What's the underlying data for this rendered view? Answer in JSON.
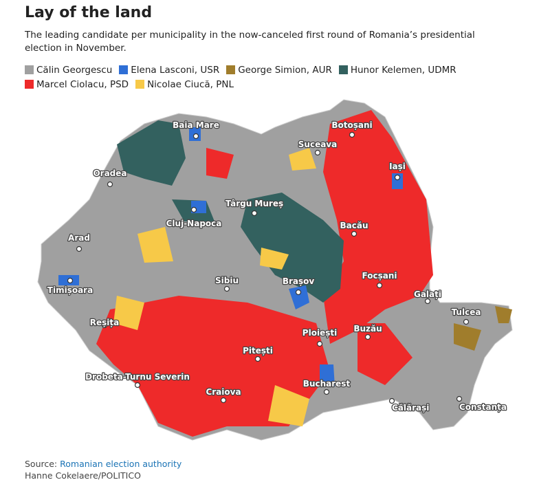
{
  "header": {
    "title": "Lay of the land",
    "subtitle": "The leading candidate per municipality in the now-canceled first round of Romania’s presidential election in November."
  },
  "legend": [
    {
      "name": "Călin Georgescu",
      "color": "#a0a0a0"
    },
    {
      "name": "Elena Lasconi, USR",
      "color": "#2f6fd6"
    },
    {
      "name": "George Simion, AUR",
      "color": "#a07d2c"
    },
    {
      "name": "Hunor Kelemen, UDMR",
      "color": "#33615f"
    },
    {
      "name": "Marcel Ciolacu, PSD",
      "color": "#ee2a2a"
    },
    {
      "name": "Nicolae Ciucă, PNL",
      "color": "#f7c948"
    }
  ],
  "map": {
    "cities": [
      "Baia Mare",
      "Botoșani",
      "Suceava",
      "Iași",
      "Oradea",
      "Cluj-Napoca",
      "Târgu Mureș",
      "Bacău",
      "Arad",
      "Timișoara",
      "Sibiu",
      "Brașov",
      "Focșani",
      "Galați",
      "Tulcea",
      "Reșița",
      "Ploiești",
      "Buzău",
      "Pitești",
      "Drobeta-Turnu Severin",
      "Craiova",
      "Bucharest",
      "Călărași",
      "Constanța"
    ]
  },
  "footer": {
    "source_label": "Source:",
    "source_link": "Romanian election authority",
    "credit": "Hanne Cokelaere/POLITICO"
  }
}
